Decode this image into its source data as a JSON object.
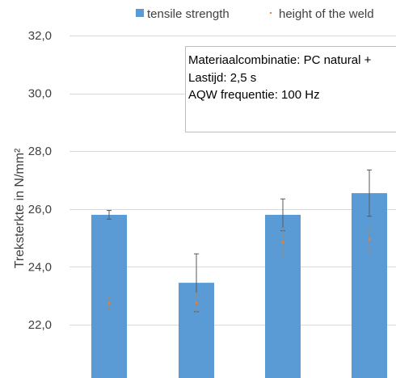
{
  "chart_data": {
    "type": "bar",
    "categories": [
      "",
      "",
      "",
      ""
    ],
    "ylabel": "Treksterkte in N/mm²",
    "ylim": [
      21.0,
      33.0
    ],
    "yticks": [
      "22,0",
      "24,0",
      "26,0",
      "28,0",
      "30,0",
      "32,0"
    ],
    "ytick_values": [
      22,
      24,
      26,
      28,
      30,
      32
    ],
    "grid": true,
    "legend_position": "top",
    "series": [
      {
        "name": "tensile strength",
        "marker": "bar",
        "color": "#5B9BD5",
        "values": [
          25.8,
          23.45,
          25.8,
          26.55
        ],
        "error": [
          0.15,
          1.0,
          0.55,
          0.8
        ]
      },
      {
        "name": "height of the weld",
        "marker": "dot",
        "color": "#ED7D31",
        "values": [
          22.75,
          22.75,
          24.85,
          24.95
        ],
        "error": [
          0.2,
          0.35,
          0.5,
          0.4
        ]
      }
    ],
    "annotation": [
      "Materiaalcombinatie: PC natural +",
      "Lastijd: 2,5 s",
      "AQW frequentie: 100 Hz"
    ]
  }
}
